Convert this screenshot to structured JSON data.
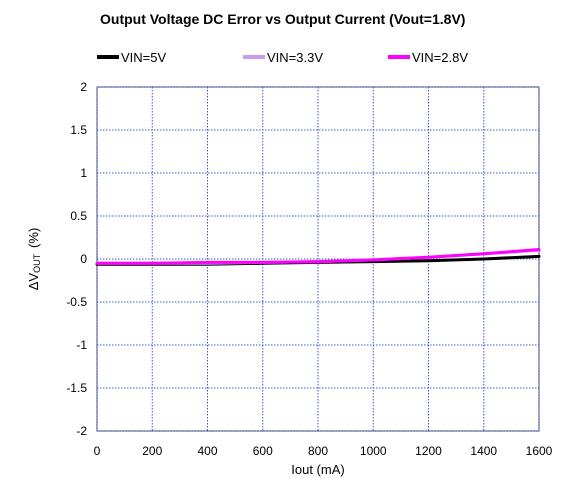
{
  "chart_data": {
    "type": "line",
    "title": "Output Voltage DC Error vs Output Current (Vout=1.8V)",
    "xlabel": "Iout (mA)",
    "ylabel_main": "ΔV",
    "ylabel_sub": "OUT",
    "ylabel_unit": "(%)",
    "xlim": [
      0,
      1600
    ],
    "ylim": [
      -2,
      2
    ],
    "x_ticks": [
      "0",
      "200",
      "400",
      "600",
      "800",
      "1000",
      "1200",
      "1400",
      "1600"
    ],
    "y_ticks": [
      "2",
      "1.5",
      "1",
      "0.5",
      "0",
      "-0.5",
      "-1",
      "-1.5",
      "-2"
    ],
    "x_tick_values": [
      0,
      200,
      400,
      600,
      800,
      1000,
      1200,
      1400,
      1600
    ],
    "y_tick_values": [
      2,
      1.5,
      1,
      0.5,
      0,
      -0.5,
      -1,
      -1.5,
      -2
    ],
    "grid": true,
    "legend_position": "top",
    "series": [
      {
        "name": "VIN=5V",
        "color": "#000000",
        "x": [
          0,
          200,
          400,
          600,
          800,
          1000,
          1200,
          1400,
          1600
        ],
        "y": [
          -0.06,
          -0.06,
          -0.06,
          -0.05,
          -0.04,
          -0.03,
          -0.02,
          0.0,
          0.03
        ]
      },
      {
        "name": "VIN=3.3V",
        "color": "#c89bf0",
        "x": [
          0,
          200,
          400,
          600,
          800,
          1000,
          1200,
          1400,
          1600
        ],
        "y": [
          -0.05,
          -0.05,
          -0.05,
          -0.04,
          -0.03,
          -0.01,
          0.02,
          0.06,
          0.1
        ]
      },
      {
        "name": "VIN=2.8V",
        "color": "#ff00ff",
        "x": [
          0,
          200,
          400,
          600,
          800,
          1000,
          1200,
          1400,
          1600
        ],
        "y": [
          -0.05,
          -0.05,
          -0.04,
          -0.04,
          -0.03,
          -0.01,
          0.02,
          0.06,
          0.11
        ]
      }
    ]
  }
}
